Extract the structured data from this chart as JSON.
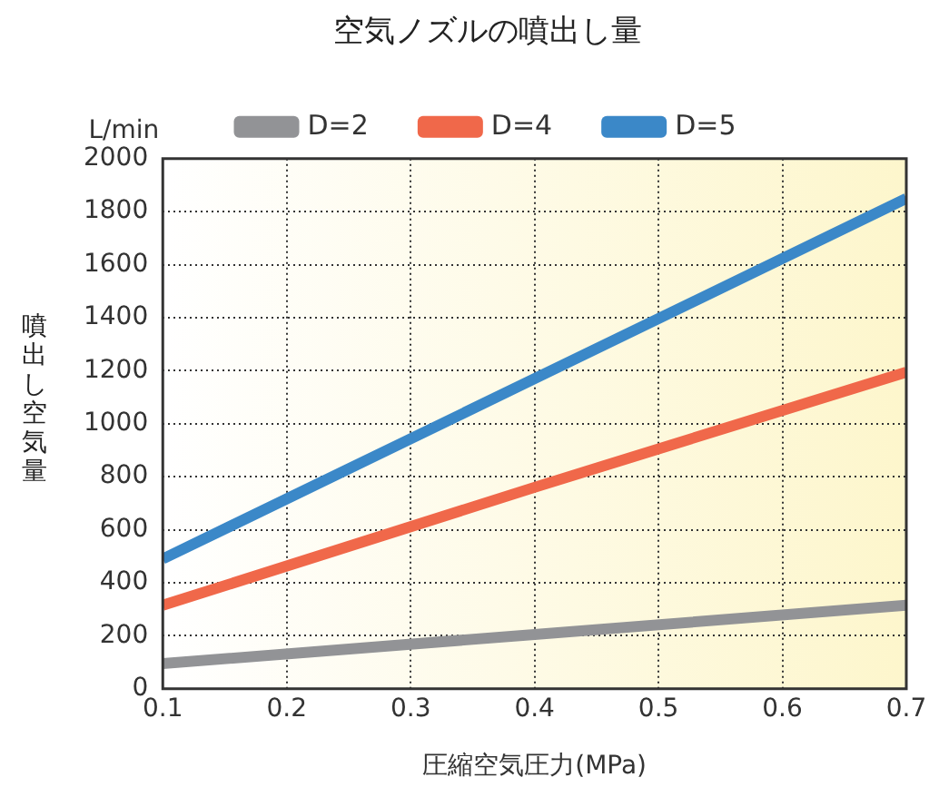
{
  "chart_data": {
    "type": "line",
    "title": "空気ノズルの噴出し量",
    "xlabel": "圧縮空気圧力(MPa)",
    "ylabel": "噴出し空気量",
    "annotations": [
      "L/min"
    ],
    "x": [
      0.1,
      0.4,
      0.7
    ],
    "series": [
      {
        "name": "D=2",
        "color": "#929396",
        "values": [
          95,
          205,
          315
        ]
      },
      {
        "name": "D=4",
        "color": "#f0684a",
        "values": [
          315,
          760,
          1195
        ]
      },
      {
        "name": "D=5",
        "color": "#3b88c8",
        "values": [
          490,
          1170,
          1850
        ]
      }
    ],
    "xlim": [
      0.1,
      0.7
    ],
    "xticks": [
      0.1,
      0.2,
      0.3,
      0.4,
      0.5,
      0.6,
      0.7
    ],
    "ylim": [
      0,
      2000
    ],
    "yticks": [
      0,
      200,
      400,
      600,
      800,
      1000,
      1200,
      1400,
      1600,
      1800,
      2000
    ],
    "grid": true,
    "legend": "top",
    "marker": "none",
    "line_style": "solid"
  }
}
